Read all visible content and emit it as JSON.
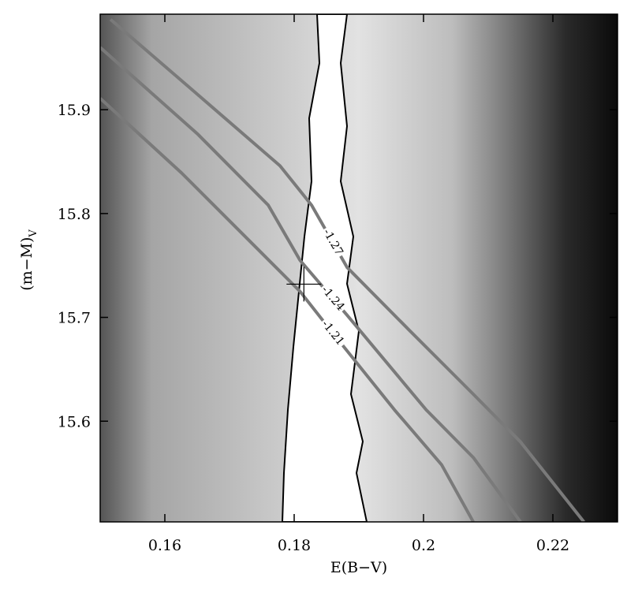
{
  "chart_data": {
    "type": "contour",
    "xlabel": "E(B−V)",
    "ylabel": "(m−M)",
    "ylabel_sub": "V",
    "xlim": [
      0.15,
      0.23
    ],
    "ylim": [
      15.503,
      15.992
    ],
    "xticks": [
      0.16,
      0.18,
      0.2,
      0.22
    ],
    "yticks": [
      15.6,
      15.7,
      15.8,
      15.9
    ],
    "series": [
      {
        "name": "-1.27",
        "color": "#7a7a7a",
        "x": [
          0.1516,
          0.165,
          0.1778,
          0.1827,
          0.1882,
          0.1979,
          0.2077,
          0.215,
          0.2248
        ],
        "y": [
          15.987,
          15.915,
          15.846,
          15.808,
          15.748,
          15.687,
          15.626,
          15.58,
          15.503
        ]
      },
      {
        "name": "-1.24",
        "color": "#7a7a7a",
        "x": [
          0.15,
          0.165,
          0.176,
          0.1809,
          0.1882,
          0.2004,
          0.2077,
          0.215
        ],
        "y": [
          15.96,
          15.877,
          15.808,
          15.755,
          15.702,
          15.611,
          15.565,
          15.503
        ]
      },
      {
        "name": "-1.21",
        "color": "#7a7a7a",
        "x": [
          0.15,
          0.1626,
          0.1748,
          0.1809,
          0.1857,
          0.1955,
          0.2028,
          0.2077
        ],
        "y": [
          15.911,
          15.839,
          15.763,
          15.725,
          15.687,
          15.611,
          15.558,
          15.503
        ]
      }
    ],
    "best_fit": {
      "x": 0.1815,
      "y": 15.732
    }
  }
}
